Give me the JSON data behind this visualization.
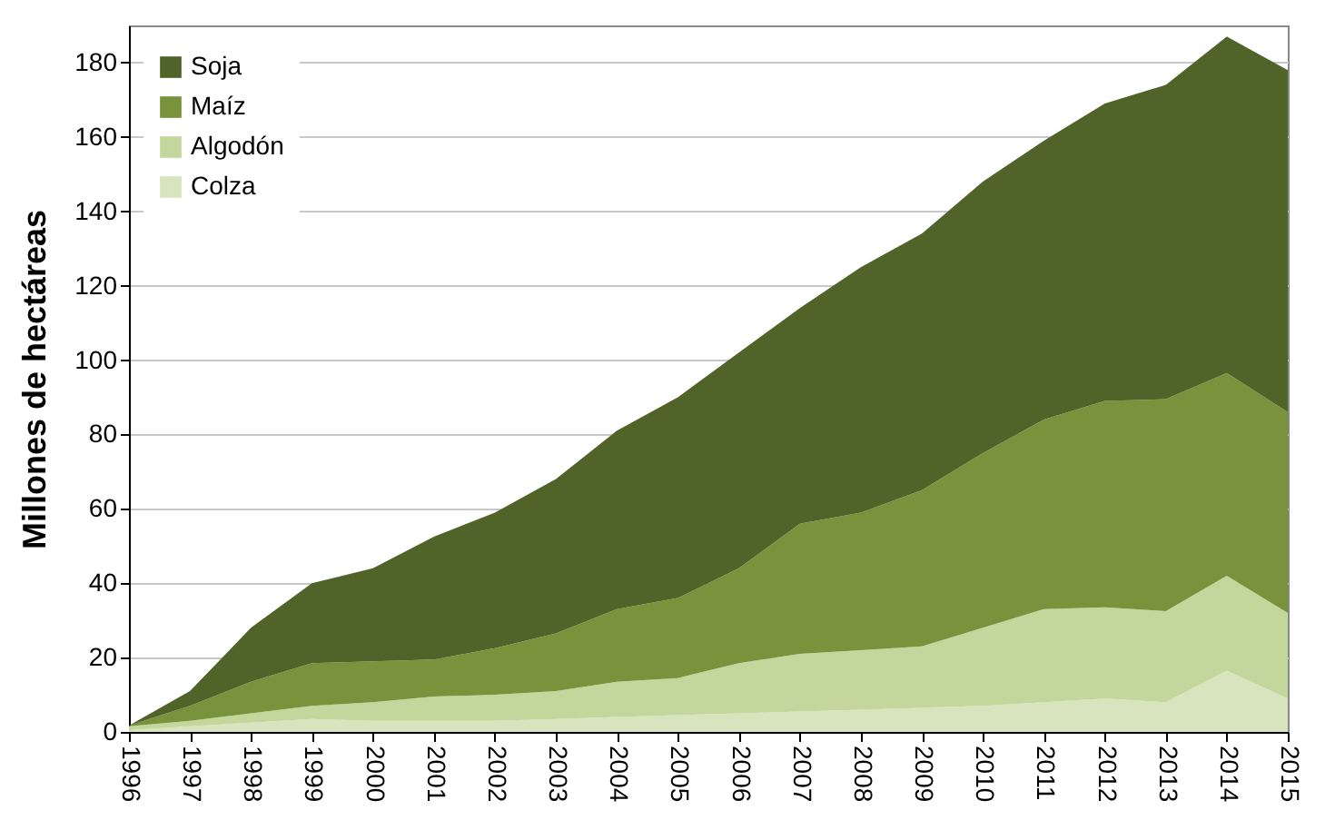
{
  "chart_data": {
    "type": "area",
    "stacked": true,
    "ylabel": "Millones de hectáreas",
    "categories": [
      "1996",
      "1997",
      "1998",
      "1999",
      "2000",
      "2001",
      "2002",
      "2003",
      "2004",
      "2005",
      "2006",
      "2007",
      "2008",
      "2009",
      "2010",
      "2011",
      "2012",
      "2013",
      "2014",
      "2015"
    ],
    "series": [
      {
        "name": "Colza",
        "color": "#d7e4bd",
        "values": [
          0.5,
          1.5,
          2.5,
          3.5,
          3,
          3,
          3,
          3.5,
          4,
          4.5,
          5,
          5.5,
          6,
          6.5,
          7,
          8,
          9,
          8,
          16.5,
          9
        ]
      },
      {
        "name": "Algodón",
        "color": "#c3d69b",
        "values": [
          1,
          1.5,
          2.5,
          3.5,
          5,
          6.5,
          7,
          7.5,
          9.5,
          10,
          13.5,
          15.5,
          16,
          16.5,
          21,
          25,
          24.5,
          24.5,
          25.5,
          23
        ]
      },
      {
        "name": "Maíz",
        "color": "#78933c",
        "values": [
          0.2,
          4,
          8.5,
          11.5,
          11,
          10,
          12.5,
          15.5,
          19.5,
          21.5,
          25.5,
          35,
          37,
          42,
          47,
          51,
          55.5,
          57,
          54.5,
          54
        ]
      },
      {
        "name": "Soja",
        "color": "#506329",
        "values": [
          0,
          4,
          14.5,
          21.5,
          25,
          33,
          36.5,
          41.5,
          48,
          54,
          58,
          58,
          66,
          69,
          73,
          75,
          80,
          84.5,
          90.5,
          92
        ]
      }
    ],
    "ylim": [
      0,
      190
    ],
    "yticks": [
      0,
      20,
      40,
      60,
      80,
      100,
      120,
      140,
      160,
      180
    ],
    "grid": "y",
    "legend": "top left"
  }
}
